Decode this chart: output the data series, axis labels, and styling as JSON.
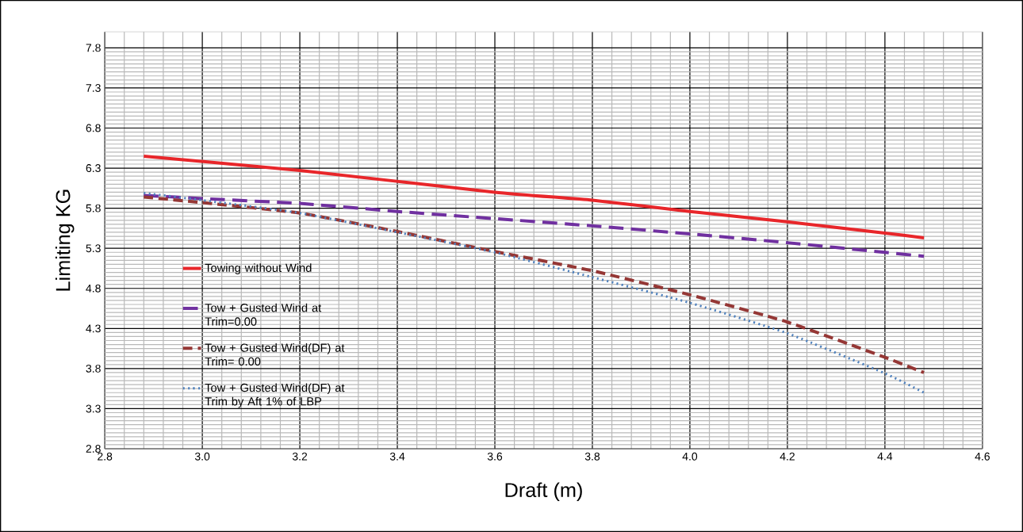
{
  "chart_data": {
    "type": "line",
    "xlabel": "Draft (m)",
    "ylabel": "Limiting KG",
    "xlim": [
      2.8,
      4.6
    ],
    "xticks": [
      2.8,
      {
        "value": 3,
        "label": "3.0"
      },
      3.2,
      3.4,
      3.6,
      3.8,
      {
        "value": 4,
        "label": "4.0"
      },
      4.2,
      4.4,
      4.6
    ],
    "ylim": [
      2.8,
      8.0
    ],
    "yticks": [
      2.8,
      3.3,
      3.8,
      4.3,
      4.8,
      5.3,
      5.8,
      6.3,
      6.8,
      7.3,
      7.8
    ],
    "grid": true,
    "legend": "bottom left",
    "marker": "none",
    "series": [
      {
        "name": "Towing without Wind",
        "color": "#e8262a",
        "line_style": "solid",
        "x": [
          2.88,
          3.2,
          3.6,
          3.8,
          4.0,
          4.2,
          4.4,
          4.48
        ],
        "values": [
          6.45,
          6.27,
          6.0,
          5.9,
          5.76,
          5.63,
          5.49,
          5.43
        ]
      },
      {
        "name": "Tow + Gusted Wind at Trim=0.00",
        "color": "#7030a0",
        "line_style": "dashed",
        "x": [
          2.88,
          3.0,
          3.2,
          3.4,
          3.6,
          3.8,
          4.0,
          4.2,
          4.4,
          4.48
        ],
        "values": [
          5.96,
          5.92,
          5.86,
          5.76,
          5.67,
          5.58,
          5.48,
          5.37,
          5.25,
          5.2
        ]
      },
      {
        "name": "Tow + Gusted Wind(DF) at Trim= 0.00",
        "color": "#953735",
        "line_style": "dashed",
        "x": [
          2.88,
          3.0,
          3.2,
          3.4,
          3.6,
          3.8,
          4.0,
          4.2,
          4.4,
          4.48
        ],
        "values": [
          5.94,
          5.87,
          5.74,
          5.51,
          5.26,
          5.02,
          4.72,
          4.38,
          3.94,
          3.75
        ]
      },
      {
        "name": "Tow + Gusted Wind(DF) at Trim by Aft 1% of LBP",
        "color": "#4f81bd",
        "line_style": "dotted",
        "x": [
          2.88,
          3.0,
          3.2,
          3.4,
          3.6,
          3.8,
          4.0,
          4.2,
          4.4,
          4.48
        ],
        "values": [
          5.99,
          5.9,
          5.74,
          5.5,
          5.25,
          4.94,
          4.62,
          4.24,
          3.74,
          3.5
        ]
      }
    ]
  }
}
